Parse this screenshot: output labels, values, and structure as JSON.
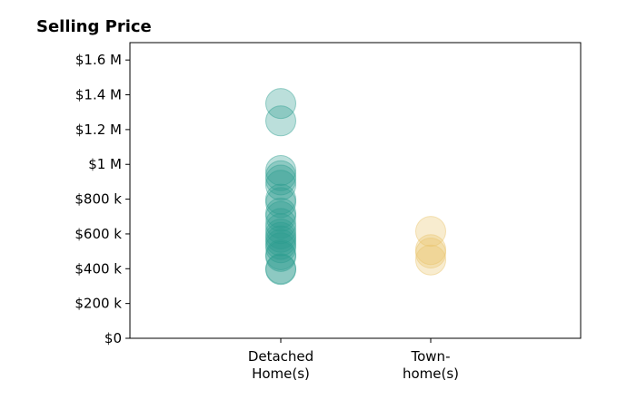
{
  "chart_data": {
    "type": "scatter",
    "title": "Selling Price",
    "xlabel": "",
    "ylabel": "",
    "grid": false,
    "legend": "none",
    "ylim": [
      0,
      1700000
    ],
    "y_ticks": [
      {
        "value": 0,
        "label": "$0"
      },
      {
        "value": 200000,
        "label": "$200 k"
      },
      {
        "value": 400000,
        "label": "$400 k"
      },
      {
        "value": 600000,
        "label": "$600 k"
      },
      {
        "value": 800000,
        "label": "$800 k"
      },
      {
        "value": 1000000,
        "label": "$1 M"
      },
      {
        "value": 1200000,
        "label": "$1.2 M"
      },
      {
        "value": 1400000,
        "label": "$1.4 M"
      },
      {
        "value": 1600000,
        "label": "$1.6 M"
      }
    ],
    "categories": [
      {
        "label_lines": [
          "Detached",
          "Home(s)"
        ]
      },
      {
        "label_lines": [
          "Town-",
          "home(s)"
        ]
      }
    ],
    "series": [
      {
        "color": "#2a9d8f",
        "values": [
          1350000,
          1250000,
          965000,
          935000,
          910000,
          880000,
          800000,
          780000,
          720000,
          700000,
          660000,
          630000,
          600000,
          580000,
          560000,
          540000,
          520000,
          480000,
          470000,
          400000,
          395000
        ]
      },
      {
        "color": "#e9c46a",
        "values": [
          615000,
          510000,
          490000,
          450000
        ]
      }
    ]
  }
}
